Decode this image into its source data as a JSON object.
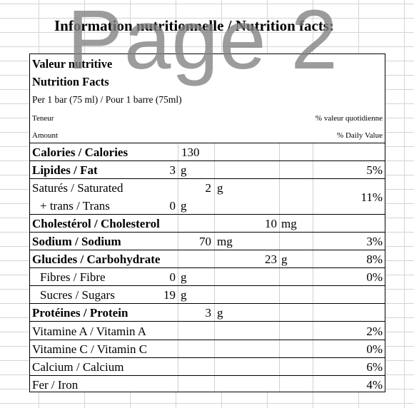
{
  "page_title": "Information nutritionnelle / Nutrition facts:",
  "watermark": "Page 2",
  "panel": {
    "heading_fr": "Valeur nutritive",
    "heading_en": "Nutrition Facts",
    "serving": "Per 1 bar (75 ml) / Pour 1 barre (75ml)",
    "teneur": "Teneur",
    "amount": "Amount",
    "dv_fr": "% valeur quotidienne",
    "dv_en": "% Daily Value"
  },
  "rows": {
    "calories": {
      "label": "Calories / Calories",
      "value": "130"
    },
    "fat": {
      "label": "Lipides / Fat",
      "value": "3",
      "unit": "g",
      "dv": "5%"
    },
    "saturated": {
      "label": "Saturés / Saturated",
      "value": "2",
      "unit": "g"
    },
    "trans": {
      "label": "+ trans / Trans",
      "value": "0",
      "unit": "g"
    },
    "sat_trans_dv": "11%",
    "cholesterol": {
      "label": "Cholestérol / Cholesterol",
      "value": "10",
      "unit": "mg"
    },
    "sodium": {
      "label": "Sodium / Sodium",
      "value": "70",
      "unit": "mg",
      "dv": "3%"
    },
    "carbohydrate": {
      "label": "Glucides / Carbohydrate",
      "value": "23",
      "unit": "g",
      "dv": "8%"
    },
    "fibre": {
      "label": "Fibres / Fibre",
      "value": "0",
      "unit": "g",
      "dv": "0%"
    },
    "sugars": {
      "label": "Sucres / Sugars",
      "value": "19",
      "unit": "g"
    },
    "protein": {
      "label": "Protéines / Protein",
      "value": "3",
      "unit": "g"
    },
    "vitamin_a": {
      "label": "Vitamine A / Vitamin A",
      "dv": "2%"
    },
    "vitamin_c": {
      "label": "Vitamine C / Vitamin C",
      "dv": "0%"
    },
    "calcium": {
      "label": "Calcium / Calcium",
      "dv": "6%"
    },
    "iron": {
      "label": "Fer / Iron",
      "dv": "4%"
    }
  }
}
